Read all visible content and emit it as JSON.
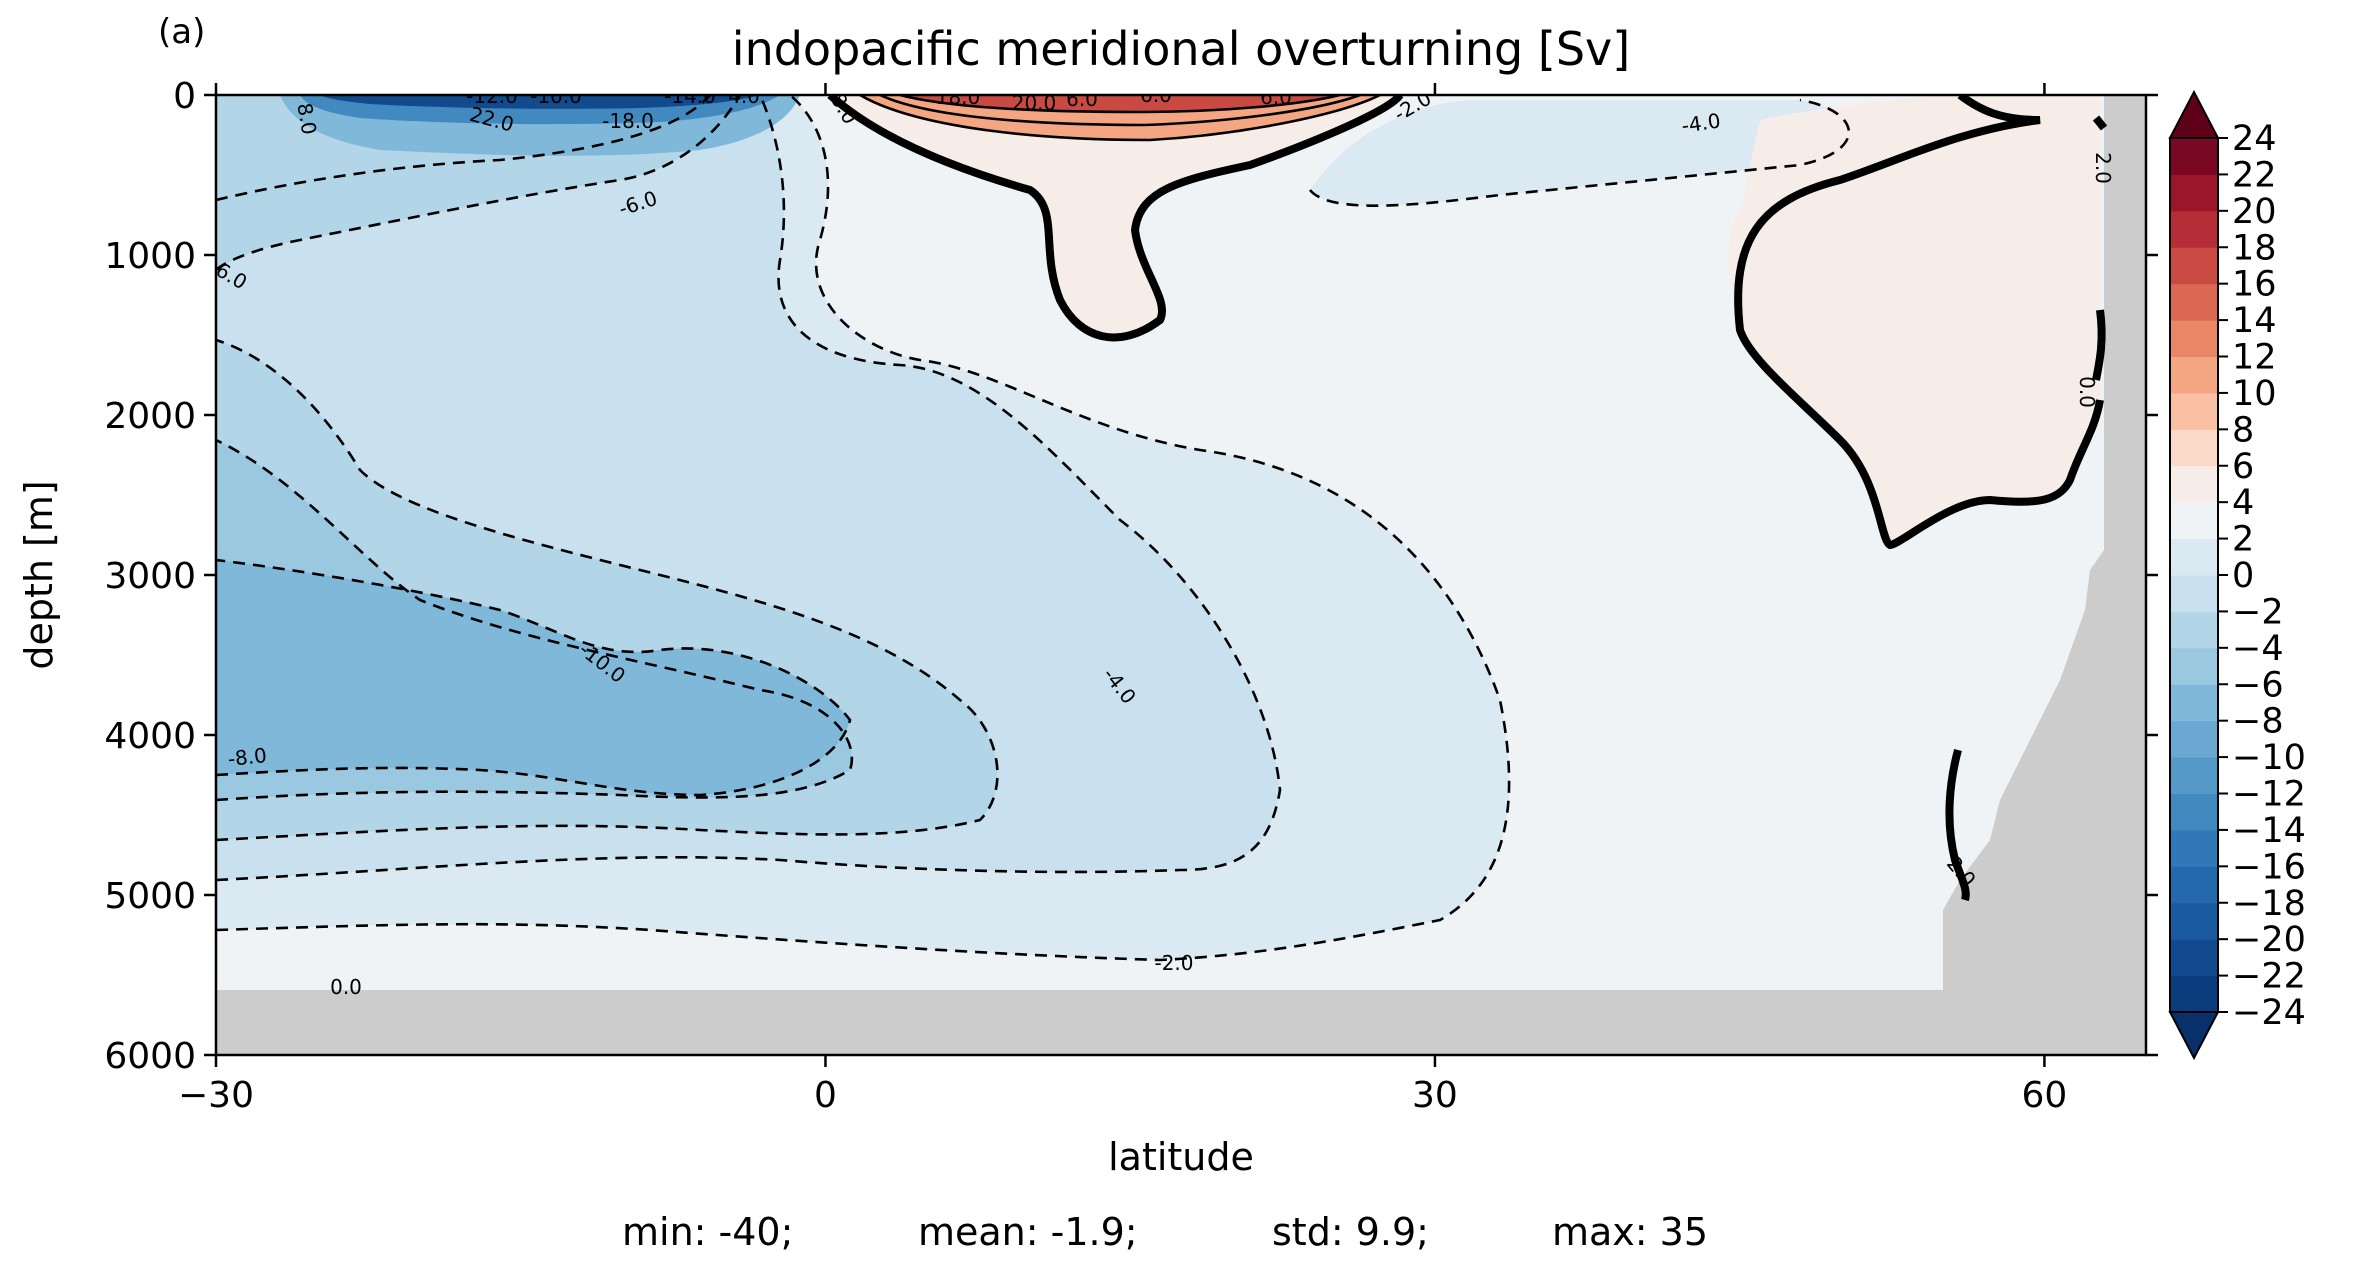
{
  "panel_label": "(a)",
  "chart_data": {
    "type": "contour",
    "title": "indopacific meridional overturning [Sv]",
    "xlabel": "latitude",
    "ylabel": "depth [m]",
    "xlim": [
      -30,
      65
    ],
    "ylim": [
      6000,
      0
    ],
    "xticks": [
      -30,
      0,
      30,
      60
    ],
    "xtick_labels": [
      "−30",
      "0",
      "30",
      "60"
    ],
    "yticks": [
      0,
      1000,
      2000,
      3000,
      4000,
      5000,
      6000
    ],
    "ytick_labels": [
      "0",
      "1000",
      "2000",
      "3000",
      "4000",
      "5000",
      "6000"
    ],
    "colorbar": {
      "levels": [
        -24,
        -22,
        -20,
        -18,
        -16,
        -14,
        -12,
        -10,
        -8,
        -6,
        -4,
        -2,
        0,
        2,
        4,
        6,
        8,
        10,
        12,
        14,
        16,
        18,
        20,
        22,
        24
      ],
      "tick_labels": [
        "24",
        "22",
        "20",
        "18",
        "16",
        "14",
        "12",
        "10",
        "8",
        "6",
        "4",
        "2",
        "0",
        "−2",
        "−4",
        "−6",
        "−8",
        "−10",
        "−12",
        "−14",
        "−16",
        "−18",
        "−20",
        "−22",
        "−24"
      ],
      "colormap": "RdBu_r",
      "extend": "both",
      "colors": [
        "#08306b",
        "#0b3d7e",
        "#124a8e",
        "#1a5a9e",
        "#2469ab",
        "#3079b6",
        "#4289c0",
        "#5599c9",
        "#6aa8d1",
        "#80b8d9",
        "#9ac8e0",
        "#b2d5e7",
        "#c9e1ee",
        "#dbe9f2",
        "#f0f3f5",
        "#f6ede8",
        "#fbd9c8",
        "#f9c0a4",
        "#f4a582",
        "#e88666",
        "#da6852",
        "#c94a43",
        "#b52d36",
        "#9b152b",
        "#7a0822",
        "#5e0018"
      ]
    },
    "contour_labels": [
      "-12.0",
      "-10.0",
      "-14.0",
      "4.0",
      "8.0",
      "22.0",
      "-18.0",
      "18.0",
      "20.0",
      "6.0",
      "6.0",
      "6.0",
      "-2.0",
      "-4.0",
      "-6.0",
      "6.0",
      "8.0",
      "-10.0",
      "-4.0",
      "-8.0",
      "-2.0",
      "0.0",
      "2.0",
      "0.0",
      "2.0"
    ],
    "land_mask": "grey topography below ~5600 m and east of ~56°N",
    "grid": false
  },
  "stats": {
    "min": "min: -40;",
    "mean": "mean: -1.9;",
    "std": "std: 9.9;",
    "max": "max: 35"
  }
}
